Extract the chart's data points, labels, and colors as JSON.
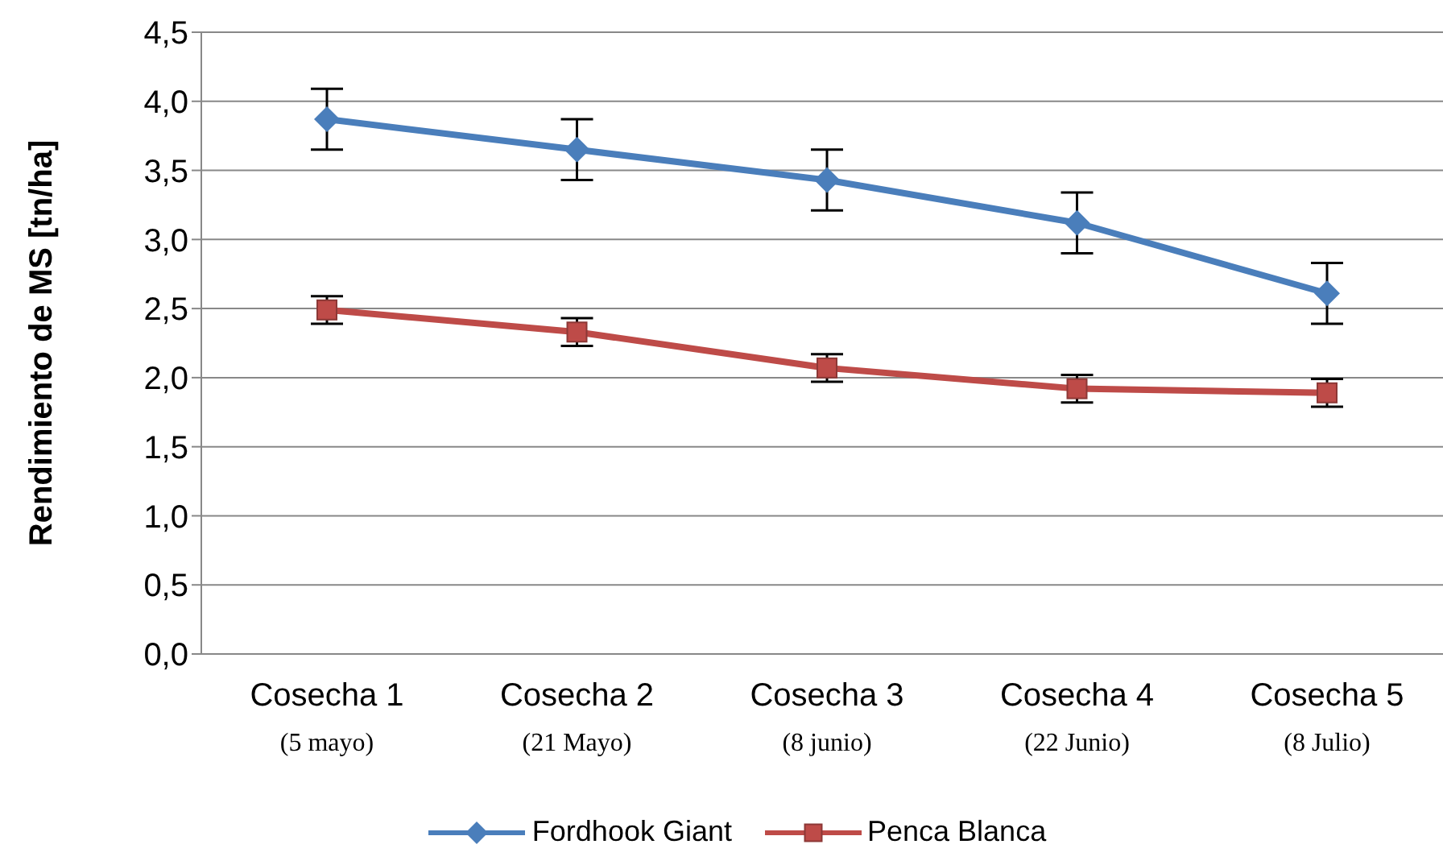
{
  "chart_data": {
    "type": "line",
    "ylabel": "Rendimiento de MS [tn/ha]",
    "categories": [
      "Cosecha 1\n(5 mayo)",
      "Cosecha 2\n(21 Mayo)",
      "Cosecha 3\n(8 junio)",
      "Cosecha 4\n(22 Junio)",
      "Cosecha 5\n(8 Julio)"
    ],
    "series": [
      {
        "name": "Fordhook Giant",
        "color": "#4a7ebb",
        "marker": "diamond",
        "values": [
          3.87,
          3.65,
          3.43,
          3.12,
          2.61
        ],
        "errors": [
          0.22,
          0.22,
          0.22,
          0.22,
          0.22
        ]
      },
      {
        "name": "Penca Blanca",
        "color": "#be4b48",
        "marker": "square",
        "values": [
          2.49,
          2.33,
          2.07,
          1.92,
          1.89
        ],
        "errors": [
          0.1,
          0.1,
          0.1,
          0.1,
          0.1
        ]
      }
    ],
    "ylim": [
      0,
      4.5
    ],
    "yticks": [
      {
        "value": 0,
        "label": "0,0"
      },
      {
        "value": 0.5,
        "label": "0,5"
      },
      {
        "value": 1,
        "label": "1,0"
      },
      {
        "value": 1.5,
        "label": "1,5"
      },
      {
        "value": 2,
        "label": "2,0"
      },
      {
        "value": 2.5,
        "label": "2,5"
      },
      {
        "value": 3,
        "label": "3,0"
      },
      {
        "value": 3.5,
        "label": "3,5"
      },
      {
        "value": 4,
        "label": "4,0"
      },
      {
        "value": 4.5,
        "label": "4,5"
      }
    ],
    "grid": "y",
    "legend": "bottom",
    "line_style": "solid"
  }
}
